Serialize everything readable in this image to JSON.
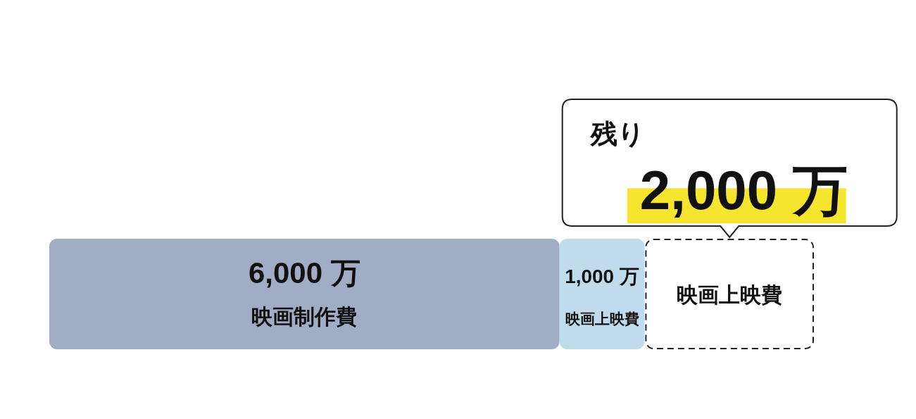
{
  "chart_data": {
    "type": "bar",
    "orientation": "horizontal",
    "stacked": true,
    "categories": [
      null
    ],
    "series": [
      {
        "name": "映画制作費",
        "color": "#a0adc4",
        "values": [
          6000
        ],
        "value_labels": [
          "6,000 万"
        ]
      },
      {
        "name": "映画上映費",
        "color": "#c0dbeb",
        "values": [
          1000
        ],
        "value_labels": [
          "1,000 万"
        ]
      },
      {
        "name": "映画上映費",
        "color": "#ffffff",
        "line_style": "dashed",
        "values": [
          2000
        ],
        "value_labels": [
          "2,000 万"
        ]
      }
    ],
    "annotations": [
      "残り"
    ]
  }
}
